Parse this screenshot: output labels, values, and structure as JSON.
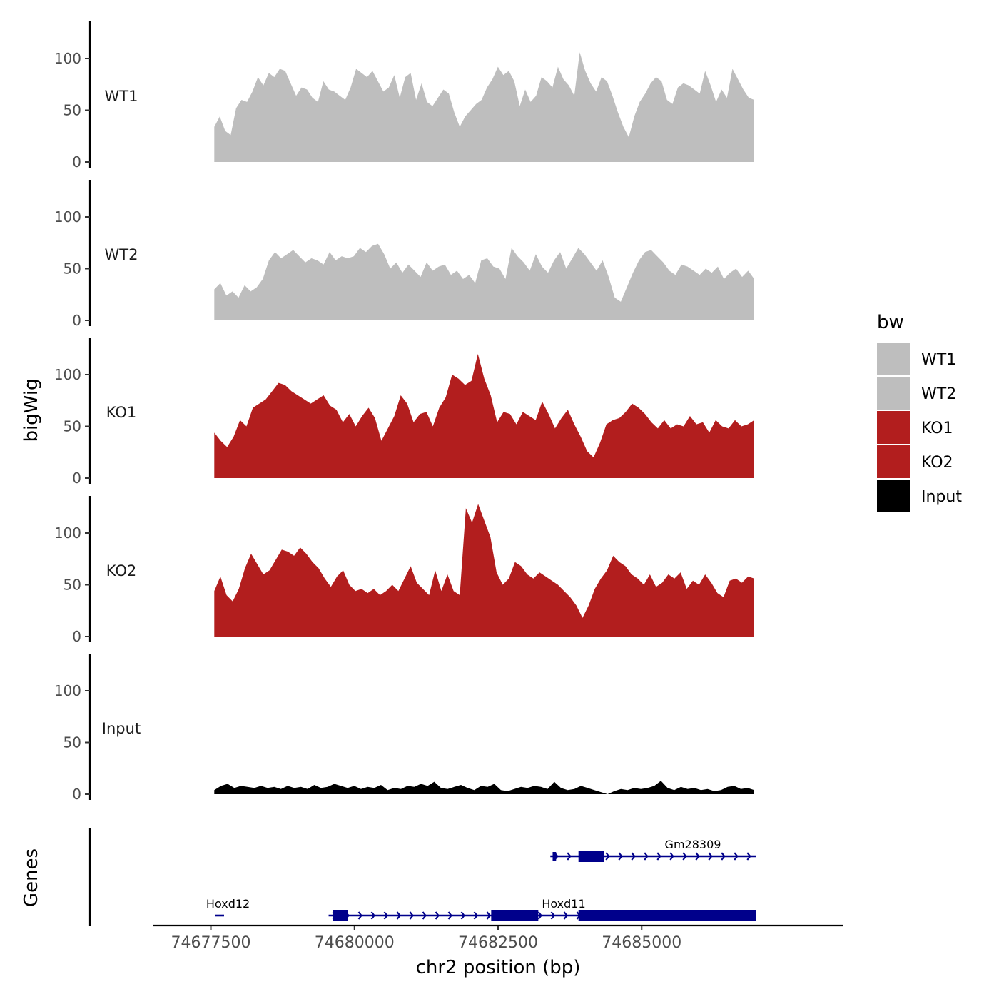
{
  "chart_data": {
    "type": "area",
    "xlabel": "chr2 position (bp)",
    "ylabel": "bigWig",
    "genes_label": "Genes",
    "xlim": [
      74676500,
      74688500
    ],
    "x_ticks": [
      74677500,
      74680000,
      74682500,
      74685000
    ],
    "x_tick_labels": [
      "74677500",
      "74680000",
      "74682500",
      "74685000"
    ],
    "ylim": [
      0,
      135
    ],
    "y_ticks": [
      0,
      50,
      100
    ],
    "y_tick_labels": [
      "0",
      "50",
      "100"
    ],
    "legend": {
      "title": "bw",
      "placement": "right",
      "entries": [
        {
          "label": "WT1",
          "color": "#bebebe"
        },
        {
          "label": "WT2",
          "color": "#bebebe"
        },
        {
          "label": "KO1",
          "color": "#b21e1e"
        },
        {
          "label": "KO2",
          "color": "#b21e1e"
        },
        {
          "label": "Input",
          "color": "#000000"
        }
      ]
    },
    "x_start": 74677560,
    "x_end": 74686960,
    "series": [
      {
        "name": "WT1",
        "color": "#bebebe",
        "values": [
          34,
          44,
          30,
          26,
          52,
          60,
          58,
          68,
          82,
          74,
          86,
          82,
          90,
          88,
          76,
          64,
          72,
          70,
          62,
          58,
          78,
          70,
          68,
          64,
          60,
          72,
          90,
          86,
          82,
          88,
          78,
          68,
          72,
          84,
          62,
          82,
          86,
          60,
          76,
          58,
          54,
          62,
          70,
          66,
          48,
          34,
          44,
          50,
          56,
          60,
          72,
          80,
          92,
          84,
          88,
          78,
          54,
          70,
          58,
          64,
          82,
          78,
          72,
          92,
          80,
          74,
          64,
          106,
          88,
          76,
          68,
          82,
          78,
          64,
          48,
          34,
          24,
          44,
          58,
          66,
          76,
          82,
          78,
          60,
          56,
          72,
          76,
          74,
          70,
          66,
          88,
          74,
          58,
          70,
          62,
          90,
          80,
          70,
          62,
          60
        ]
      },
      {
        "name": "WT2",
        "color": "#bebebe",
        "values": [
          30,
          36,
          24,
          28,
          22,
          34,
          28,
          32,
          40,
          58,
          66,
          60,
          64,
          68,
          62,
          56,
          60,
          58,
          54,
          66,
          58,
          62,
          60,
          62,
          70,
          66,
          72,
          74,
          64,
          50,
          56,
          46,
          54,
          48,
          42,
          56,
          48,
          52,
          54,
          44,
          48,
          40,
          44,
          36,
          58,
          60,
          52,
          50,
          40,
          70,
          62,
          56,
          48,
          64,
          52,
          46,
          58,
          66,
          50,
          60,
          70,
          64,
          56,
          48,
          58,
          42,
          22,
          18,
          32,
          46,
          58,
          66,
          68,
          62,
          56,
          48,
          44,
          54,
          52,
          48,
          44,
          50,
          46,
          52,
          40,
          46,
          50,
          42,
          48,
          40
        ]
      },
      {
        "name": "KO1",
        "color": "#b21e1e",
        "values": [
          44,
          36,
          30,
          40,
          56,
          50,
          68,
          72,
          76,
          84,
          92,
          90,
          84,
          80,
          76,
          72,
          76,
          80,
          70,
          66,
          54,
          62,
          50,
          60,
          68,
          58,
          36,
          48,
          60,
          80,
          72,
          54,
          62,
          64,
          50,
          68,
          78,
          100,
          96,
          90,
          94,
          120,
          96,
          80,
          54,
          64,
          62,
          52,
          64,
          60,
          56,
          74,
          62,
          48,
          58,
          66,
          52,
          40,
          26,
          20,
          34,
          52,
          56,
          58,
          64,
          72,
          68,
          62,
          54,
          48,
          56,
          48,
          52,
          50,
          60,
          52,
          54,
          44,
          56,
          50,
          48,
          56,
          50,
          52,
          56
        ]
      },
      {
        "name": "KO2",
        "color": "#b21e1e",
        "values": [
          44,
          58,
          40,
          34,
          46,
          66,
          80,
          70,
          60,
          64,
          74,
          84,
          82,
          78,
          86,
          80,
          72,
          66,
          56,
          48,
          58,
          64,
          50,
          44,
          46,
          42,
          46,
          40,
          44,
          50,
          44,
          56,
          68,
          52,
          46,
          40,
          64,
          44,
          60,
          44,
          40,
          124,
          110,
          128,
          112,
          96,
          62,
          50,
          56,
          72,
          68,
          60,
          56,
          62,
          58,
          54,
          50,
          44,
          38,
          30,
          18,
          30,
          46,
          56,
          64,
          78,
          72,
          68,
          60,
          56,
          50,
          60,
          48,
          52,
          60,
          56,
          62,
          46,
          54,
          50,
          60,
          52,
          42,
          38,
          54,
          56,
          52,
          58,
          56
        ]
      },
      {
        "name": "Input",
        "color": "#000000",
        "values": [
          4,
          8,
          10,
          6,
          8,
          7,
          6,
          8,
          6,
          7,
          5,
          8,
          6,
          7,
          5,
          9,
          6,
          7,
          10,
          8,
          6,
          8,
          5,
          7,
          6,
          9,
          4,
          6,
          5,
          8,
          7,
          10,
          8,
          12,
          6,
          5,
          7,
          9,
          6,
          4,
          8,
          7,
          10,
          4,
          3,
          5,
          7,
          6,
          8,
          7,
          5,
          12,
          6,
          4,
          5,
          8,
          6,
          4,
          2,
          0,
          3,
          5,
          4,
          6,
          5,
          6,
          8,
          13,
          6,
          4,
          7,
          5,
          6,
          4,
          5,
          3,
          4,
          7,
          8,
          5,
          6,
          4
        ]
      }
    ],
    "genes": [
      {
        "name": "Gm28309",
        "label": "Gm28309",
        "strand": "+",
        "row": 1,
        "start": 74683410,
        "end": 74686990,
        "exons": [
          [
            74683450,
            74683510
          ],
          [
            74683900,
            74684350
          ]
        ]
      },
      {
        "name": "Hoxd12",
        "label": "Hoxd12",
        "strand": "+",
        "row": 2,
        "start": 74677570,
        "end": 74677730,
        "exons": []
      },
      {
        "name": "Hoxd11",
        "label": "Hoxd11",
        "strand": "+",
        "row": 2,
        "start": 74679550,
        "end": 74686990,
        "exons": [
          [
            74679620,
            74679880
          ],
          [
            74682380,
            74683200
          ],
          [
            74683900,
            74686990
          ]
        ]
      }
    ]
  }
}
